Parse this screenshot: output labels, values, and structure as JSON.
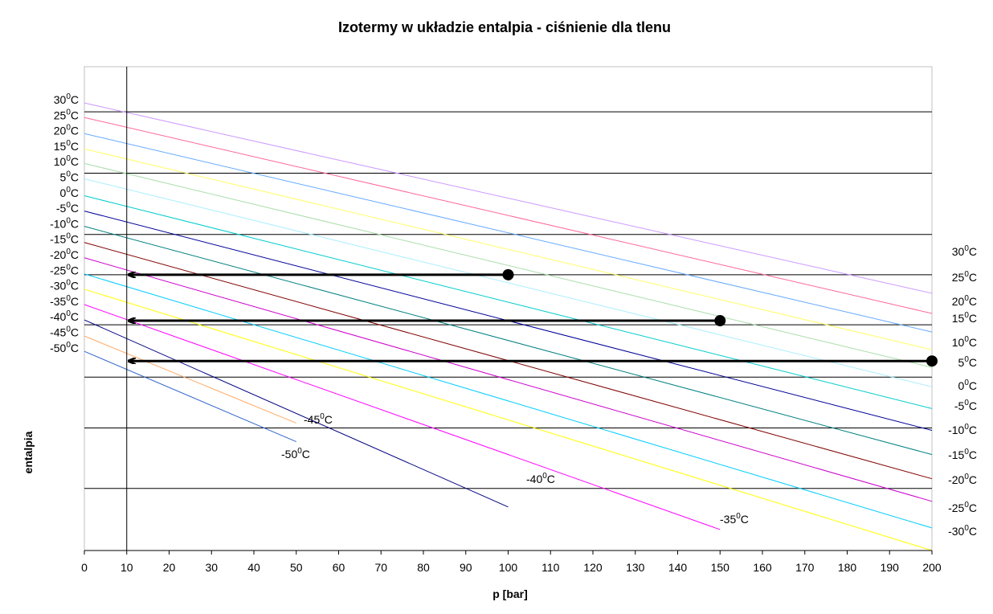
{
  "chart_data": {
    "type": "line",
    "title": "Izotermy w układzie entalpia - ciśnienie dla tlenu",
    "xlabel": "p [bar]",
    "ylabel": "entalpia",
    "xlim": [
      0,
      200
    ],
    "x_ticks": [
      0,
      10,
      20,
      30,
      40,
      50,
      60,
      70,
      80,
      90,
      100,
      110,
      120,
      130,
      140,
      150,
      160,
      170,
      180,
      190,
      200
    ],
    "y_ticks_visible": false,
    "vertical_reference_x": 10,
    "series": [
      {
        "name": "30°C",
        "color": "#cc99ff",
        "x": [
          0,
          200
        ],
        "y_start": 555,
        "y_end": 319
      },
      {
        "name": "25°C",
        "color": "#ff6699",
        "x": [
          0,
          200
        ],
        "y_start": 537,
        "y_end": 294
      },
      {
        "name": "20°C",
        "color": "#66aaff",
        "x": [
          0,
          200
        ],
        "y_start": 517,
        "y_end": 271
      },
      {
        "name": "15°C",
        "color": "#ffff66",
        "x": [
          0,
          200
        ],
        "y_start": 498,
        "y_end": 249
      },
      {
        "name": "10°C",
        "color": "#aaddaa",
        "x": [
          0,
          200
        ],
        "y_start": 480,
        "y_end": 227
      },
      {
        "name": "5°C",
        "color": "#aaeeff",
        "x": [
          0,
          200
        ],
        "y_start": 461,
        "y_end": 203
      },
      {
        "name": "0°C",
        "color": "#00cccc",
        "x": [
          0,
          200
        ],
        "y_start": 440,
        "y_end": 176
      },
      {
        "name": "-5°C",
        "color": "#000099",
        "x": [
          0,
          200
        ],
        "y_start": 421,
        "y_end": 149
      },
      {
        "name": "-10°C",
        "color": "#008080",
        "x": [
          0,
          200
        ],
        "y_start": 402,
        "y_end": 119
      },
      {
        "name": "-15°C",
        "color": "#800000",
        "x": [
          0,
          200
        ],
        "y_start": 382,
        "y_end": 89
      },
      {
        "name": "-20°C",
        "color": "#cc00cc",
        "x": [
          0,
          200
        ],
        "y_start": 363,
        "y_end": 61
      },
      {
        "name": "-25°C",
        "color": "#00ccff",
        "x": [
          0,
          200
        ],
        "y_start": 343,
        "y_end": 28
      },
      {
        "name": "-30°C",
        "color": "#ffff00",
        "x": [
          0,
          200
        ],
        "y_start": 324,
        "y_end": 0
      },
      {
        "name": "-35°C",
        "color": "#ff00ff",
        "x": [
          0,
          150
        ],
        "y_start": 305,
        "y_end": 26
      },
      {
        "name": "-40°C",
        "color": "#000080",
        "x": [
          0,
          100
        ],
        "y_start": 286,
        "y_end": 54
      },
      {
        "name": "-45°C",
        "color": "#ffaa66",
        "x": [
          0,
          50
        ],
        "y_start": 266,
        "y_end": 158
      },
      {
        "name": "-50°C",
        "color": "#3366cc",
        "x": [
          0,
          50
        ],
        "y_start": 247,
        "y_end": 135
      }
    ],
    "horizontal_gridlines_y": [
      544,
      468,
      392,
      342,
      280,
      215,
      152,
      77
    ],
    "arrows": [
      {
        "from_x": 100,
        "to_x": 10,
        "y": 342
      },
      {
        "from_x": 150,
        "to_x": 10,
        "y": 285
      },
      {
        "from_x": 200,
        "to_x": 10,
        "y": 235
      }
    ],
    "left_labels": [
      "30°C",
      "25°C",
      "20°C",
      "15°C",
      "10°C",
      "5°C",
      "0°C",
      "-5°C",
      "-10°C",
      "-15°C",
      "-20°C",
      "-25°C",
      "-30°C",
      "-35°C",
      "-40°C",
      "-45°C",
      "-50°C"
    ],
    "right_labels": [
      "30°C",
      "25°C",
      "20°C",
      "15°C",
      "10°C",
      "5°C",
      "0°C",
      "-5°C",
      "-10°C",
      "-15°C",
      "-20°C",
      "-25°C",
      "-30°C"
    ],
    "inline_labels": [
      "-45°C",
      "-50°C",
      "-40°C",
      "-35°C"
    ]
  }
}
